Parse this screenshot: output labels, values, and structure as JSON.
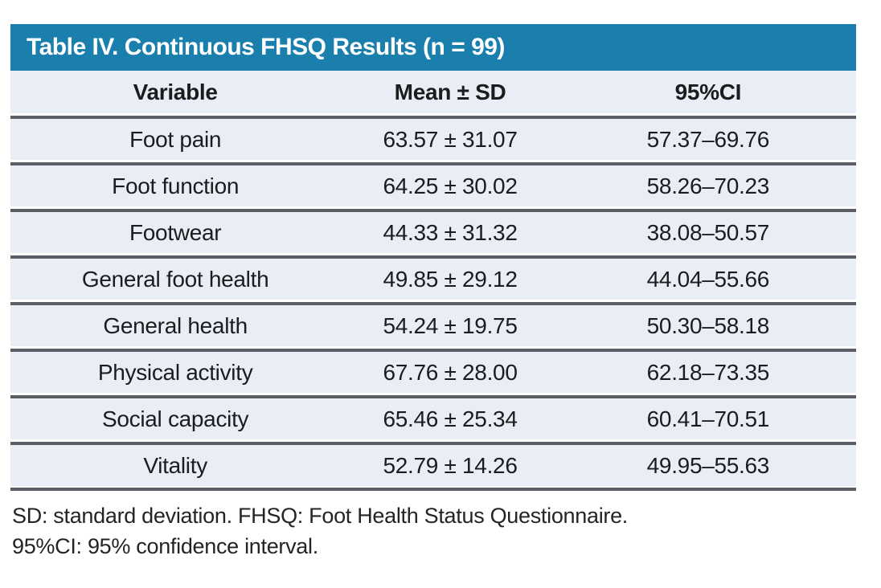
{
  "table": {
    "title": "Table IV. Continuous FHSQ Results (n = 99)",
    "columns": [
      "Variable",
      "Mean ± SD",
      "95%CI"
    ],
    "rows": [
      {
        "variable": "Foot pain",
        "mean_sd": "63.57 ± 31.07",
        "ci": "57.37–69.76"
      },
      {
        "variable": "Foot function",
        "mean_sd": "64.25 ± 30.02",
        "ci": "58.26–70.23"
      },
      {
        "variable": "Footwear",
        "mean_sd": "44.33 ± 31.32",
        "ci": "38.08–50.57"
      },
      {
        "variable": "General foot health",
        "mean_sd": "49.85 ± 29.12",
        "ci": "44.04–55.66"
      },
      {
        "variable": "General health",
        "mean_sd": "54.24 ± 19.75",
        "ci": "50.30–58.18"
      },
      {
        "variable": "Physical activity",
        "mean_sd": "67.76 ± 28.00",
        "ci": "62.18–73.35"
      },
      {
        "variable": "Social capacity",
        "mean_sd": "65.46 ± 25.34",
        "ci": "60.41–70.51"
      },
      {
        "variable": "Vitality",
        "mean_sd": "52.79 ± 14.26",
        "ci": "49.95–55.63"
      }
    ],
    "footnotes": [
      "SD: standard deviation. FHSQ: Foot Health Status Questionnaire.",
      "95%CI: 95% confidence interval."
    ],
    "colors": {
      "title_bar": "#1b7fae",
      "row_background": "#e9edf5",
      "divider": "#5a5d64",
      "text": "#1c1c1e",
      "title_text": "#ffffff"
    }
  }
}
